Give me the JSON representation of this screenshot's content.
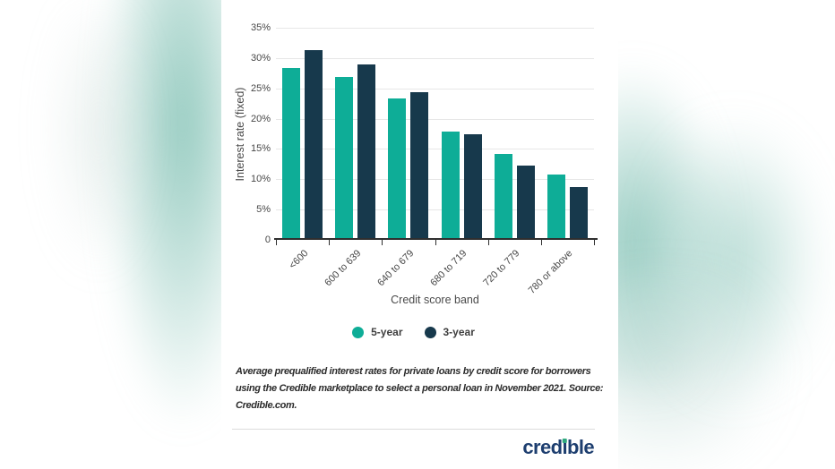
{
  "colors": {
    "series_5yr": "#0EAD97",
    "series_3yr": "#17394C",
    "logo_navy": "#1D3E6F",
    "logo_dot_green": "#2FA87E"
  },
  "chart_data": {
    "type": "bar",
    "categories": [
      "<600",
      "600 to 639",
      "640 to 679",
      "680 to 719",
      "720 to 779",
      "780 or above"
    ],
    "series": [
      {
        "name": "5-year",
        "color": "#0EAD97",
        "values": [
          28.4,
          26.9,
          23.3,
          17.9,
          14.2,
          10.8
        ]
      },
      {
        "name": "3-year",
        "color": "#17394C",
        "values": [
          31.3,
          28.9,
          24.3,
          17.5,
          12.2,
          8.7
        ]
      }
    ],
    "xlabel": "Credit score band",
    "ylabel": "Interest rate (fixed)",
    "ylim": [
      0,
      35
    ],
    "y_tick_labels": [
      "35%",
      "30%",
      "25%",
      "20%",
      "15%",
      "10%",
      "5%",
      "0"
    ],
    "grid": true,
    "legend_position": "bottom"
  },
  "caption": {
    "lines": [
      "Average prequalified interest rates for private loans by credit score for borrowers",
      "using the Credible marketplace to select a personal loan in November 2021. Source:",
      "Credible.com."
    ]
  },
  "footer": {
    "logo_text": "credible"
  }
}
